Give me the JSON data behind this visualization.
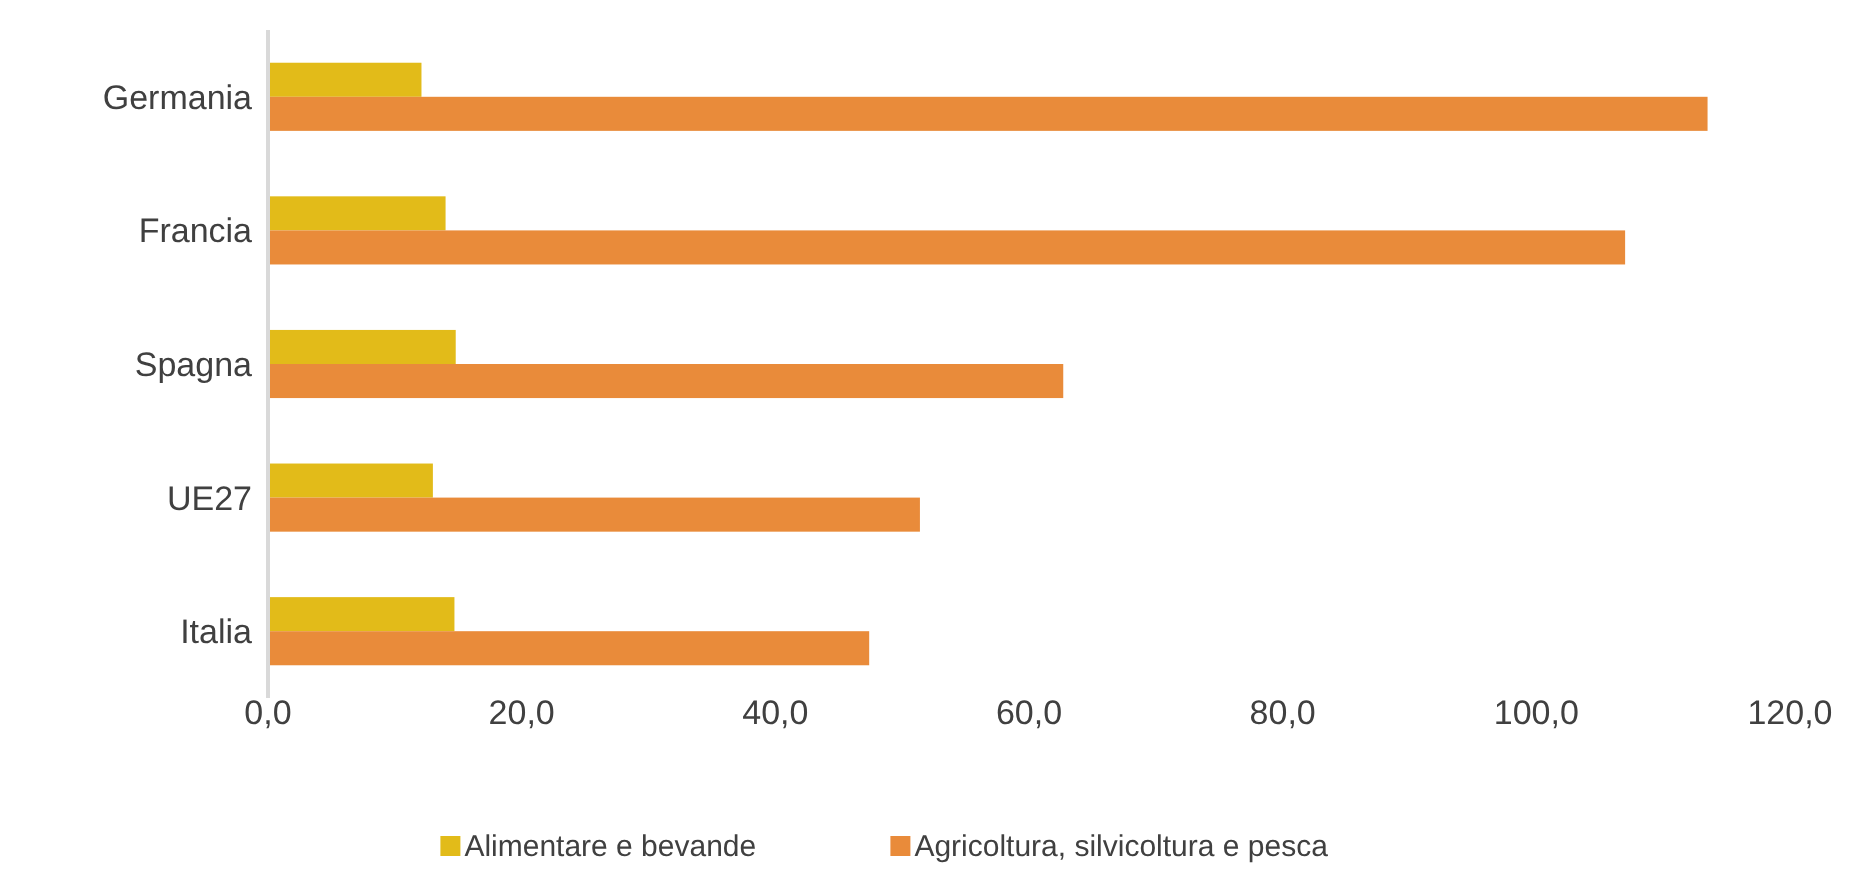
{
  "chart_data": {
    "type": "bar",
    "orientation": "horizontal",
    "categories": [
      "Germania",
      "Francia",
      "Spagna",
      "UE27",
      "Italia"
    ],
    "series": [
      {
        "name": "Alimentare e bevande",
        "color": "#e2bb19",
        "values": [
          12.1,
          14.0,
          14.8,
          13.0,
          14.7
        ]
      },
      {
        "name": "Agricoltura, silvicoltura e pesca",
        "color": "#e98b3a",
        "values": [
          113.5,
          107.0,
          62.7,
          51.4,
          47.4
        ]
      }
    ],
    "xlim": [
      0,
      120
    ],
    "xticks": [
      {
        "value": 0,
        "label": "0,0"
      },
      {
        "value": 20,
        "label": "20,0"
      },
      {
        "value": 40,
        "label": "40,0"
      },
      {
        "value": 60,
        "label": "60,0"
      },
      {
        "value": 80,
        "label": "80,0"
      },
      {
        "value": 100,
        "label": "100,0"
      },
      {
        "value": 120,
        "label": "120,0"
      }
    ],
    "grid": false,
    "legend": "bottom"
  }
}
